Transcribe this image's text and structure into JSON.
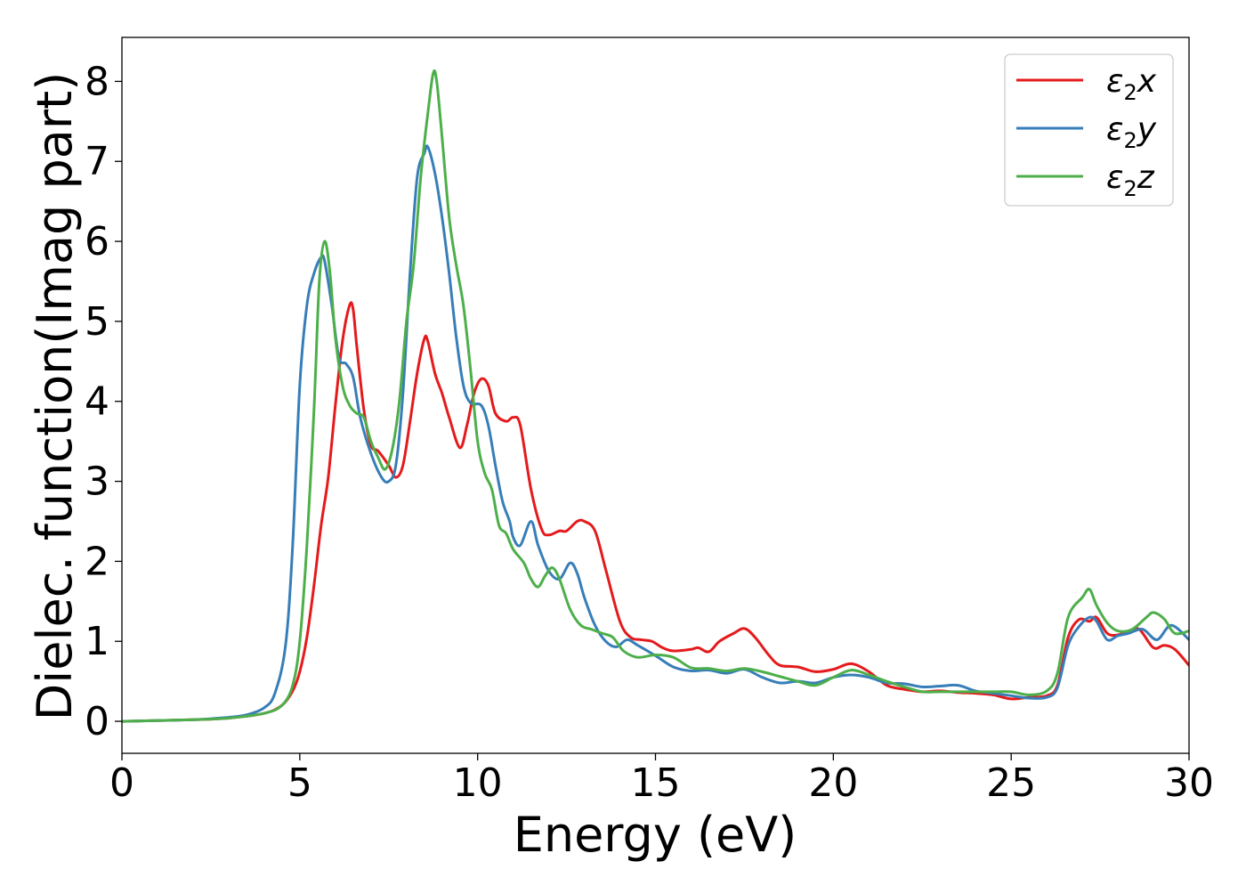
{
  "chart_data": {
    "type": "line",
    "title": "",
    "xlabel": "Energy (eV)",
    "ylabel": "Dielec. function(Imag part)",
    "xlim": [
      0,
      30
    ],
    "ylim": [
      -0.4,
      8.55
    ],
    "xticks": [
      0,
      5,
      10,
      15,
      20,
      25,
      30
    ],
    "yticks": [
      0,
      1,
      2,
      3,
      4,
      5,
      6,
      7,
      8
    ],
    "grid": false,
    "legend_position": "top-right",
    "series": [
      {
        "name": "ε2x",
        "legend": {
          "base": "ε",
          "sub": "2",
          "suffix": "x"
        },
        "color": "#e41a1c",
        "points": [
          [
            0,
            0
          ],
          [
            2,
            0.02
          ],
          [
            3,
            0.04
          ],
          [
            4,
            0.1
          ],
          [
            4.5,
            0.2
          ],
          [
            4.8,
            0.38
          ],
          [
            5.0,
            0.62
          ],
          [
            5.2,
            1.05
          ],
          [
            5.4,
            1.7
          ],
          [
            5.6,
            2.45
          ],
          [
            5.8,
            3.05
          ],
          [
            6.0,
            3.95
          ],
          [
            6.2,
            4.75
          ],
          [
            6.4,
            5.2
          ],
          [
            6.5,
            5.15
          ],
          [
            6.6,
            4.7
          ],
          [
            6.8,
            3.9
          ],
          [
            7.0,
            3.45
          ],
          [
            7.2,
            3.38
          ],
          [
            7.5,
            3.2
          ],
          [
            7.7,
            3.05
          ],
          [
            7.9,
            3.2
          ],
          [
            8.1,
            3.75
          ],
          [
            8.3,
            4.35
          ],
          [
            8.5,
            4.78
          ],
          [
            8.6,
            4.75
          ],
          [
            8.8,
            4.35
          ],
          [
            9.0,
            4.1
          ],
          [
            9.2,
            3.8
          ],
          [
            9.5,
            3.42
          ],
          [
            9.7,
            3.7
          ],
          [
            9.9,
            4.1
          ],
          [
            10.1,
            4.28
          ],
          [
            10.3,
            4.2
          ],
          [
            10.5,
            3.85
          ],
          [
            10.8,
            3.75
          ],
          [
            11.0,
            3.8
          ],
          [
            11.2,
            3.7
          ],
          [
            11.5,
            2.9
          ],
          [
            11.8,
            2.4
          ],
          [
            12.0,
            2.33
          ],
          [
            12.3,
            2.38
          ],
          [
            12.5,
            2.38
          ],
          [
            12.8,
            2.5
          ],
          [
            13.0,
            2.5
          ],
          [
            13.3,
            2.38
          ],
          [
            13.6,
            1.9
          ],
          [
            14.0,
            1.25
          ],
          [
            14.3,
            1.05
          ],
          [
            14.6,
            1.02
          ],
          [
            14.9,
            1.0
          ],
          [
            15.2,
            0.92
          ],
          [
            15.5,
            0.88
          ],
          [
            16.0,
            0.9
          ],
          [
            16.2,
            0.92
          ],
          [
            16.5,
            0.87
          ],
          [
            16.8,
            1.0
          ],
          [
            17.2,
            1.1
          ],
          [
            17.5,
            1.16
          ],
          [
            17.8,
            1.05
          ],
          [
            18.2,
            0.82
          ],
          [
            18.5,
            0.7
          ],
          [
            19.0,
            0.68
          ],
          [
            19.5,
            0.62
          ],
          [
            20.0,
            0.65
          ],
          [
            20.5,
            0.72
          ],
          [
            21.0,
            0.62
          ],
          [
            21.5,
            0.45
          ],
          [
            22.0,
            0.4
          ],
          [
            22.5,
            0.37
          ],
          [
            23.0,
            0.38
          ],
          [
            23.5,
            0.36
          ],
          [
            24.0,
            0.35
          ],
          [
            24.5,
            0.33
          ],
          [
            25.0,
            0.28
          ],
          [
            25.5,
            0.3
          ],
          [
            26.0,
            0.32
          ],
          [
            26.3,
            0.45
          ],
          [
            26.6,
            1.05
          ],
          [
            26.9,
            1.27
          ],
          [
            27.2,
            1.25
          ],
          [
            27.4,
            1.3
          ],
          [
            27.7,
            1.1
          ],
          [
            28.0,
            1.08
          ],
          [
            28.3,
            1.13
          ],
          [
            28.6,
            1.15
          ],
          [
            29.0,
            0.92
          ],
          [
            29.3,
            0.95
          ],
          [
            29.6,
            0.9
          ],
          [
            30.0,
            0.7
          ]
        ]
      },
      {
        "name": "ε2y",
        "legend": {
          "base": "ε",
          "sub": "2",
          "suffix": "y"
        },
        "color": "#377eb8",
        "points": [
          [
            0,
            0
          ],
          [
            2,
            0.02
          ],
          [
            3,
            0.05
          ],
          [
            3.5,
            0.08
          ],
          [
            4.0,
            0.17
          ],
          [
            4.3,
            0.35
          ],
          [
            4.6,
            0.95
          ],
          [
            4.8,
            2.2
          ],
          [
            5.0,
            4.2
          ],
          [
            5.2,
            5.2
          ],
          [
            5.4,
            5.6
          ],
          [
            5.6,
            5.8
          ],
          [
            5.7,
            5.75
          ],
          [
            5.9,
            5.2
          ],
          [
            6.1,
            4.55
          ],
          [
            6.3,
            4.47
          ],
          [
            6.5,
            4.3
          ],
          [
            6.7,
            3.8
          ],
          [
            7.0,
            3.35
          ],
          [
            7.3,
            3.05
          ],
          [
            7.5,
            3.0
          ],
          [
            7.7,
            3.2
          ],
          [
            7.9,
            4.1
          ],
          [
            8.1,
            5.6
          ],
          [
            8.3,
            6.8
          ],
          [
            8.5,
            7.1
          ],
          [
            8.6,
            7.18
          ],
          [
            8.8,
            6.85
          ],
          [
            9.0,
            6.3
          ],
          [
            9.2,
            5.6
          ],
          [
            9.4,
            4.8
          ],
          [
            9.6,
            4.2
          ],
          [
            9.8,
            3.98
          ],
          [
            10.1,
            3.95
          ],
          [
            10.3,
            3.7
          ],
          [
            10.5,
            3.2
          ],
          [
            10.7,
            2.75
          ],
          [
            10.9,
            2.5
          ],
          [
            11.0,
            2.3
          ],
          [
            11.2,
            2.2
          ],
          [
            11.5,
            2.5
          ],
          [
            11.7,
            2.2
          ],
          [
            12.0,
            1.88
          ],
          [
            12.3,
            1.78
          ],
          [
            12.6,
            1.98
          ],
          [
            12.8,
            1.85
          ],
          [
            13.0,
            1.55
          ],
          [
            13.3,
            1.2
          ],
          [
            13.6,
            1.0
          ],
          [
            13.9,
            0.93
          ],
          [
            14.2,
            1.02
          ],
          [
            14.5,
            0.95
          ],
          [
            15.0,
            0.82
          ],
          [
            15.5,
            0.68
          ],
          [
            16.0,
            0.63
          ],
          [
            16.5,
            0.64
          ],
          [
            17.0,
            0.6
          ],
          [
            17.5,
            0.65
          ],
          [
            18.0,
            0.55
          ],
          [
            18.5,
            0.48
          ],
          [
            19.0,
            0.5
          ],
          [
            19.5,
            0.48
          ],
          [
            20.0,
            0.55
          ],
          [
            20.5,
            0.58
          ],
          [
            21.0,
            0.55
          ],
          [
            21.5,
            0.48
          ],
          [
            22.0,
            0.47
          ],
          [
            22.5,
            0.43
          ],
          [
            23.0,
            0.44
          ],
          [
            23.5,
            0.45
          ],
          [
            24.0,
            0.38
          ],
          [
            24.5,
            0.35
          ],
          [
            25.0,
            0.32
          ],
          [
            25.5,
            0.29
          ],
          [
            26.0,
            0.3
          ],
          [
            26.3,
            0.42
          ],
          [
            26.6,
            0.95
          ],
          [
            26.9,
            1.18
          ],
          [
            27.2,
            1.3
          ],
          [
            27.4,
            1.25
          ],
          [
            27.7,
            1.02
          ],
          [
            28.0,
            1.07
          ],
          [
            28.3,
            1.1
          ],
          [
            28.7,
            1.15
          ],
          [
            29.1,
            1.02
          ],
          [
            29.5,
            1.2
          ],
          [
            30.0,
            1.02
          ]
        ]
      },
      {
        "name": "ε2z",
        "legend": {
          "base": "ε",
          "sub": "2",
          "suffix": "z"
        },
        "color": "#4daf4a",
        "points": [
          [
            0,
            0
          ],
          [
            2,
            0.02
          ],
          [
            3,
            0.04
          ],
          [
            4.0,
            0.1
          ],
          [
            4.5,
            0.2
          ],
          [
            4.8,
            0.45
          ],
          [
            5.0,
            1.0
          ],
          [
            5.2,
            2.2
          ],
          [
            5.4,
            3.9
          ],
          [
            5.55,
            5.5
          ],
          [
            5.7,
            6.0
          ],
          [
            5.85,
            5.6
          ],
          [
            6.0,
            4.8
          ],
          [
            6.2,
            4.2
          ],
          [
            6.4,
            3.95
          ],
          [
            6.6,
            3.85
          ],
          [
            6.8,
            3.8
          ],
          [
            7.0,
            3.5
          ],
          [
            7.2,
            3.3
          ],
          [
            7.4,
            3.15
          ],
          [
            7.6,
            3.4
          ],
          [
            7.8,
            4.0
          ],
          [
            8.0,
            5.0
          ],
          [
            8.2,
            5.7
          ],
          [
            8.4,
            6.8
          ],
          [
            8.6,
            7.6
          ],
          [
            8.75,
            8.1
          ],
          [
            8.85,
            8.0
          ],
          [
            9.0,
            7.3
          ],
          [
            9.2,
            6.3
          ],
          [
            9.4,
            5.7
          ],
          [
            9.6,
            5.2
          ],
          [
            9.8,
            4.4
          ],
          [
            10.0,
            3.5
          ],
          [
            10.2,
            3.1
          ],
          [
            10.4,
            2.9
          ],
          [
            10.6,
            2.45
          ],
          [
            10.8,
            2.35
          ],
          [
            11.0,
            2.15
          ],
          [
            11.3,
            1.98
          ],
          [
            11.5,
            1.78
          ],
          [
            11.7,
            1.68
          ],
          [
            11.9,
            1.82
          ],
          [
            12.1,
            1.92
          ],
          [
            12.3,
            1.78
          ],
          [
            12.6,
            1.4
          ],
          [
            12.9,
            1.2
          ],
          [
            13.2,
            1.15
          ],
          [
            13.5,
            1.1
          ],
          [
            13.8,
            1.05
          ],
          [
            14.1,
            0.88
          ],
          [
            14.5,
            0.8
          ],
          [
            15.0,
            0.83
          ],
          [
            15.5,
            0.8
          ],
          [
            16.0,
            0.67
          ],
          [
            16.5,
            0.66
          ],
          [
            17.0,
            0.63
          ],
          [
            17.5,
            0.66
          ],
          [
            18.0,
            0.62
          ],
          [
            18.5,
            0.56
          ],
          [
            19.0,
            0.5
          ],
          [
            19.5,
            0.45
          ],
          [
            20.0,
            0.55
          ],
          [
            20.5,
            0.64
          ],
          [
            21.0,
            0.58
          ],
          [
            21.5,
            0.5
          ],
          [
            22.0,
            0.43
          ],
          [
            22.5,
            0.37
          ],
          [
            23.0,
            0.37
          ],
          [
            23.5,
            0.37
          ],
          [
            24.0,
            0.37
          ],
          [
            24.5,
            0.37
          ],
          [
            25.0,
            0.37
          ],
          [
            25.5,
            0.33
          ],
          [
            26.0,
            0.38
          ],
          [
            26.3,
            0.6
          ],
          [
            26.6,
            1.3
          ],
          [
            27.0,
            1.55
          ],
          [
            27.2,
            1.65
          ],
          [
            27.4,
            1.45
          ],
          [
            27.7,
            1.23
          ],
          [
            28.0,
            1.13
          ],
          [
            28.4,
            1.15
          ],
          [
            28.8,
            1.3
          ],
          [
            29.0,
            1.36
          ],
          [
            29.3,
            1.28
          ],
          [
            29.6,
            1.1
          ],
          [
            30.0,
            1.13
          ]
        ]
      }
    ]
  }
}
